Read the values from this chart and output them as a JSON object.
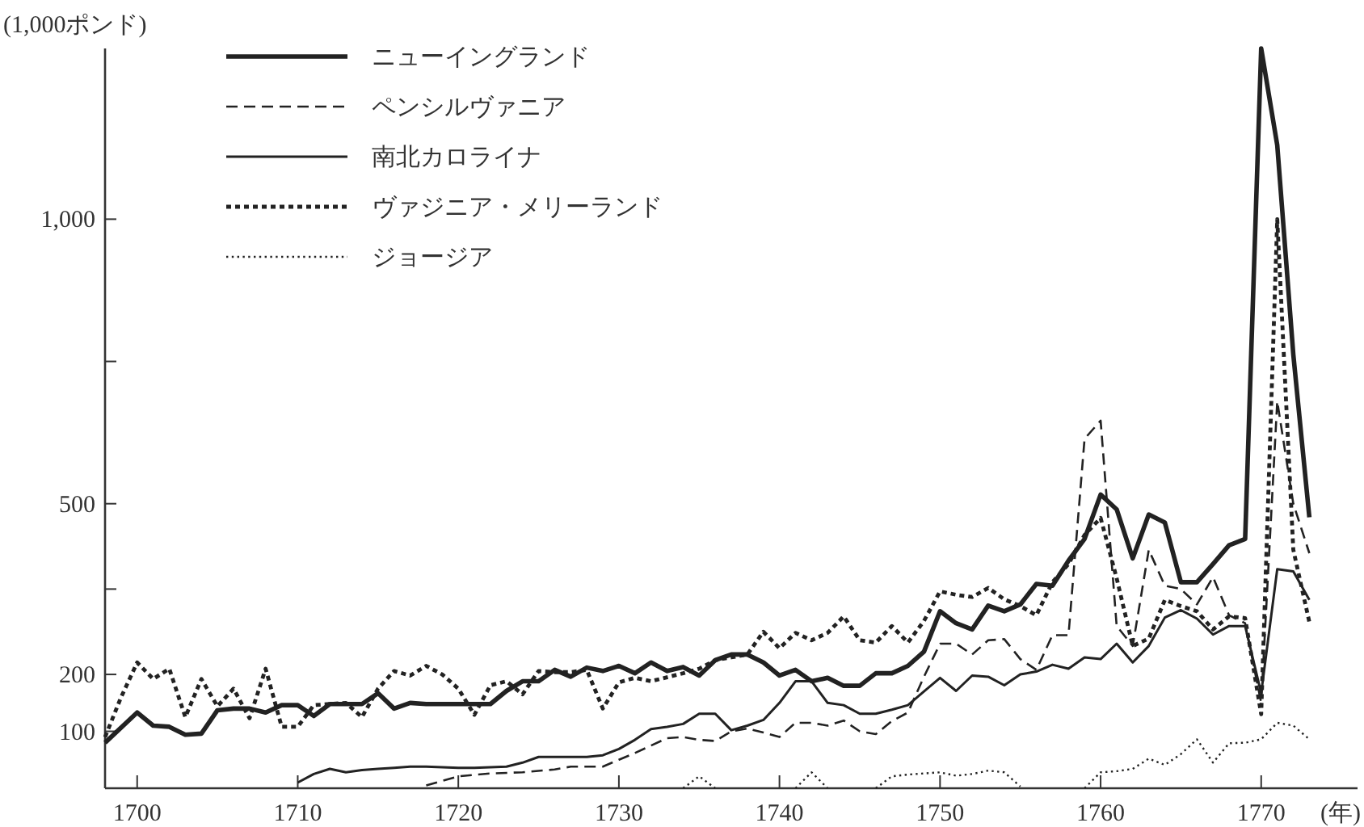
{
  "chart_data": {
    "type": "line",
    "ylabel": "(1,000ポンド)",
    "xlabel": "(年)",
    "legend": "top left",
    "grid": false,
    "xlim": [
      1698,
      1776
    ],
    "xticks": [
      1700,
      1710,
      1720,
      1730,
      1740,
      1750,
      1760,
      1770
    ],
    "ylim": [
      0,
      1300
    ],
    "yticks": [
      100,
      200,
      {
        "value": 350,
        "label": null
      },
      500,
      {
        "value": 750,
        "label": null
      },
      {
        "value": 1000,
        "label": "1,000"
      }
    ],
    "series": [
      {
        "name": "ニューイングランド",
        "color": "#222222",
        "line_style": "solid",
        "x": [
          1698,
          1700,
          1701,
          1702,
          1703,
          1704,
          1705,
          1706,
          1707,
          1708,
          1709,
          1710,
          1711,
          1712,
          1713,
          1714,
          1715,
          1716,
          1717,
          1718,
          1719,
          1720,
          1721,
          1722,
          1723,
          1724,
          1725,
          1726,
          1727,
          1728,
          1729,
          1730,
          1731,
          1732,
          1733,
          1734,
          1735,
          1736,
          1737,
          1738,
          1739,
          1740,
          1741,
          1742,
          1743,
          1744,
          1745,
          1746,
          1747,
          1748,
          1749,
          1750,
          1751,
          1752,
          1753,
          1754,
          1755,
          1756,
          1757,
          1758,
          1759,
          1760,
          1761,
          1762,
          1763,
          1764,
          1765,
          1766,
          1767,
          1768,
          1769,
          1770,
          1771,
          1772,
          1773
        ],
        "values": [
          80,
          133,
          110,
          108,
          94,
          96,
          137,
          140,
          140,
          133,
          146,
          146,
          127,
          148,
          148,
          148,
          167,
          140,
          150,
          148,
          148,
          148,
          148,
          148,
          171,
          188,
          188,
          208,
          196,
          212,
          206,
          215,
          202,
          221,
          206,
          213,
          198,
          225,
          235,
          235,
          221,
          198,
          208,
          188,
          194,
          180,
          180,
          202,
          202,
          215,
          240,
          311,
          290,
          279,
          321,
          311,
          323,
          359,
          356,
          400,
          438,
          516,
          490,
          404,
          481,
          467,
          362,
          362,
          394,
          427,
          438,
          1300,
          1130,
          762,
          476
        ]
      },
      {
        "name": "ペンシルヴァニア",
        "color": "#222222",
        "line_style": "dashed",
        "x": [
          1718,
          1720,
          1722,
          1724,
          1726,
          1727,
          1728,
          1729,
          1730,
          1731,
          1732,
          1733,
          1734,
          1735,
          1736,
          1737,
          1738,
          1739,
          1740,
          1741,
          1742,
          1743,
          1744,
          1745,
          1746,
          1747,
          1748,
          1749,
          1750,
          1751,
          1752,
          1753,
          1754,
          1755,
          1756,
          1757,
          1758,
          1759,
          1760,
          1761,
          1762,
          1763,
          1764,
          1765,
          1766,
          1767,
          1768,
          1769,
          1770,
          1771,
          1772,
          1773
        ],
        "values": [
          5,
          21,
          26,
          28,
          33,
          38,
          38,
          38,
          50,
          62,
          75,
          88,
          90,
          85,
          83,
          100,
          105,
          98,
          90,
          115,
          115,
          110,
          119,
          100,
          95,
          118,
          133,
          196,
          254,
          254,
          235,
          260,
          262,
          227,
          208,
          269,
          269,
          614,
          646,
          285,
          250,
          419,
          356,
          350,
          323,
          371,
          304,
          290,
          150,
          680,
          500,
          413
        ]
      },
      {
        "name": "南北カロライナ",
        "color": "#222222",
        "line_style": "solid",
        "x": [
          1710,
          1711,
          1712,
          1713,
          1714,
          1715,
          1716,
          1717,
          1718,
          1719,
          1720,
          1721,
          1722,
          1723,
          1724,
          1725,
          1726,
          1727,
          1728,
          1729,
          1730,
          1731,
          1732,
          1733,
          1734,
          1735,
          1736,
          1737,
          1738,
          1739,
          1740,
          1741,
          1742,
          1743,
          1744,
          1745,
          1746,
          1747,
          1748,
          1749,
          1750,
          1751,
          1752,
          1753,
          1754,
          1755,
          1756,
          1757,
          1758,
          1759,
          1760,
          1761,
          1762,
          1763,
          1764,
          1765,
          1766,
          1767,
          1768,
          1769,
          1770,
          1771,
          1772,
          1773
        ],
        "values": [
          10,
          25,
          34,
          28,
          32,
          34,
          36,
          38,
          38,
          37,
          36,
          36,
          37,
          38,
          45,
          55,
          55,
          55,
          55,
          58,
          69,
          85,
          104,
          108,
          113,
          131,
          131,
          102,
          110,
          120,
          150,
          188,
          188,
          150,
          146,
          131,
          131,
          138,
          146,
          170,
          194,
          171,
          198,
          196,
          181,
          200,
          205,
          217,
          210,
          230,
          227,
          254,
          221,
          250,
          300,
          313,
          298,
          270,
          285,
          285,
          167,
          385,
          381,
          331
        ]
      },
      {
        "name": "ヴァジニア・メリーランド",
        "color": "#222222",
        "line_style": "dotted",
        "x": [
          1698,
          1699,
          1700,
          1701,
          1702,
          1703,
          1704,
          1705,
          1706,
          1707,
          1708,
          1709,
          1710,
          1711,
          1712,
          1713,
          1714,
          1715,
          1716,
          1717,
          1718,
          1719,
          1720,
          1721,
          1722,
          1723,
          1724,
          1725,
          1726,
          1727,
          1728,
          1729,
          1730,
          1731,
          1732,
          1733,
          1734,
          1735,
          1736,
          1737,
          1738,
          1739,
          1740,
          1741,
          1742,
          1743,
          1744,
          1745,
          1746,
          1747,
          1748,
          1749,
          1750,
          1751,
          1752,
          1753,
          1754,
          1755,
          1756,
          1757,
          1758,
          1759,
          1760,
          1761,
          1762,
          1763,
          1764,
          1765,
          1766,
          1767,
          1768,
          1769,
          1770,
          1771,
          1772,
          1773
        ],
        "values": [
          90,
          160,
          221,
          192,
          210,
          125,
          192,
          144,
          175,
          123,
          210,
          108,
          108,
          146,
          148,
          150,
          125,
          175,
          206,
          198,
          215,
          200,
          175,
          129,
          181,
          188,
          165,
          206,
          204,
          204,
          208,
          140,
          186,
          194,
          188,
          195,
          202,
          210,
          225,
          230,
          235,
          275,
          246,
          273,
          260,
          273,
          302,
          260,
          256,
          285,
          256,
          294,
          346,
          340,
          336,
          352,
          332,
          320,
          304,
          362,
          394,
          445,
          475,
          369,
          250,
          263,
          331,
          320,
          311,
          279,
          302,
          299,
          130,
          1000,
          419,
          292
        ]
      },
      {
        "name": "ジョージア",
        "color": "#222222",
        "line_style": "dotted",
        "x": [
          1734,
          1735,
          1736,
          1737,
          1741,
          1742,
          1743,
          1744,
          1746,
          1747,
          1748,
          1749,
          1750,
          1751,
          1752,
          1753,
          1754,
          1755,
          1756,
          1759,
          1760,
          1761,
          1762,
          1763,
          1764,
          1765,
          1766,
          1767,
          1768,
          1769,
          1770,
          1771,
          1772,
          1773
        ],
        "values": [
          0,
          21,
          0,
          null,
          0,
          28,
          0,
          null,
          0,
          21,
          24,
          26,
          28,
          22,
          25,
          31,
          28,
          3,
          null,
          0,
          28,
          30,
          34,
          52,
          41,
          60,
          86,
          45,
          79,
          80,
          86,
          115,
          110,
          86
        ]
      }
    ]
  }
}
